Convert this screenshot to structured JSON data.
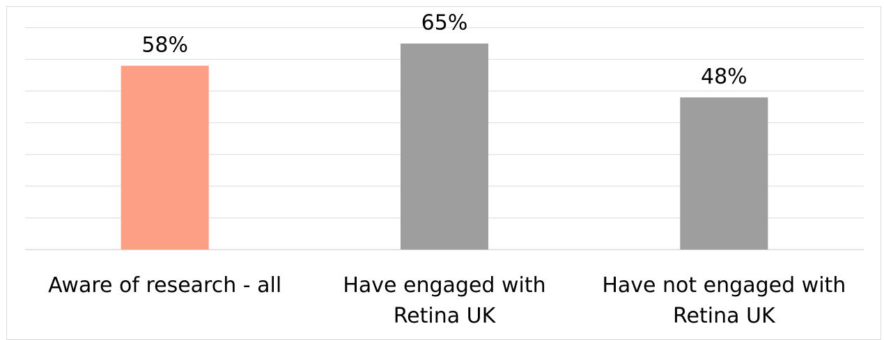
{
  "chart_data": {
    "type": "bar",
    "categories": [
      [
        "Aware of research - all"
      ],
      [
        "Have engaged with",
        "Retina UK"
      ],
      [
        "Have not engaged with",
        "Retina UK"
      ]
    ],
    "values": [
      58,
      65,
      48
    ],
    "data_labels": [
      "58%",
      "65%",
      "48%"
    ],
    "colors": [
      "#FC9F85",
      "#9E9E9E",
      "#9E9E9E"
    ],
    "ylim": [
      0,
      70
    ],
    "grid": true,
    "gridline_color": "#d9d9d9"
  }
}
